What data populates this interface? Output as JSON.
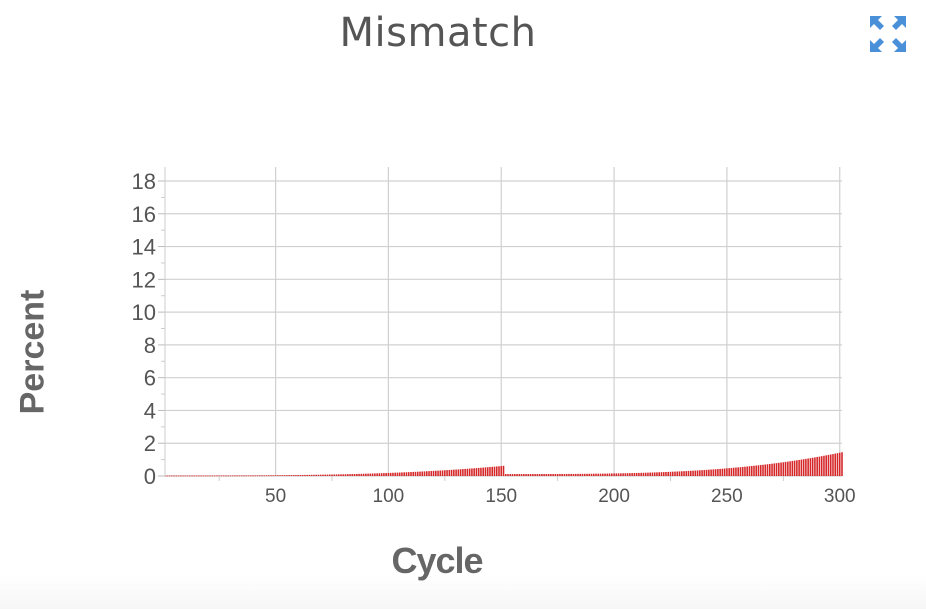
{
  "title": "Mismatch",
  "expand_icon": "expand-arrows-icon",
  "colors": {
    "bar": "#d62728",
    "grid": "#d0d0d0",
    "text": "#555555"
  },
  "chart_data": {
    "type": "bar",
    "title": "Mismatch",
    "xlabel": "Cycle",
    "ylabel": "Percent",
    "xlim": [
      1,
      301
    ],
    "ylim": [
      0,
      18
    ],
    "xticks": [
      50,
      100,
      150,
      200,
      250,
      300
    ],
    "yticks": [
      0,
      2,
      4,
      6,
      8,
      10,
      12,
      14,
      16,
      18
    ],
    "grid": true,
    "segments": [
      {
        "x_start": 1,
        "x_end": 151,
        "y_start": 0.03,
        "y_end": 0.62
      },
      {
        "x_start": 152,
        "x_end": 301,
        "y_start": 0.12,
        "y_end": 1.45
      }
    ]
  }
}
